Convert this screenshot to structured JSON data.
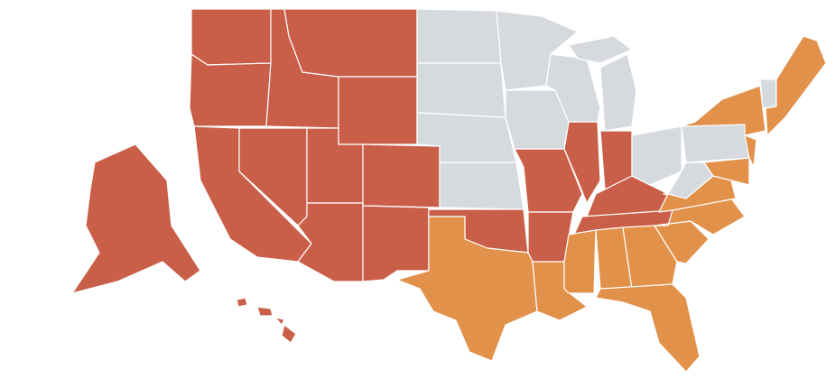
{
  "map": {
    "groups": [
      {
        "color": "#c95f48"
      },
      {
        "color": "#e2914a"
      },
      {
        "color": "#d6dadf"
      }
    ],
    "border_color": "#ffffff"
  }
}
